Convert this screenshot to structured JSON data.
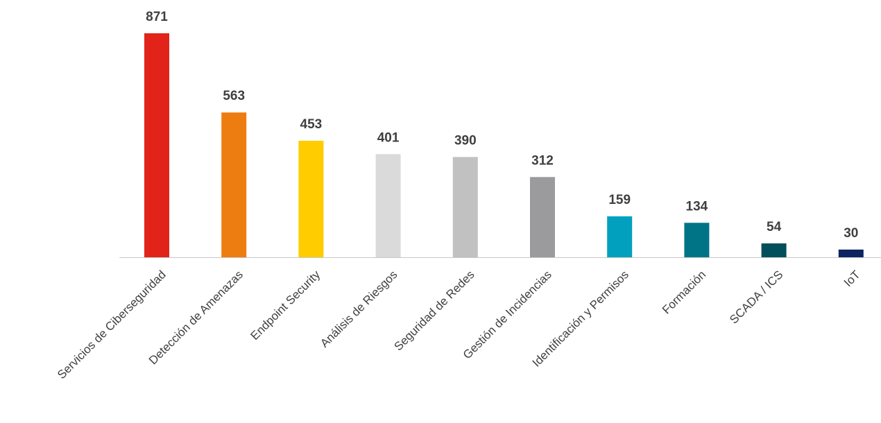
{
  "chart_data": {
    "type": "bar",
    "categories": [
      "Servicios de Ciberseguridad",
      "Detección de Amenazas",
      "Endpoint Security",
      "Análisis de Riesgos",
      "Seguridad de Redes",
      "Gestión de Incidencias",
      "Identificación y Permisos",
      "Formación",
      "SCADA / ICS",
      "IoT"
    ],
    "values": [
      871,
      563,
      453,
      401,
      390,
      312,
      159,
      134,
      54,
      30
    ],
    "colors": [
      "#e2231a",
      "#ee7d11",
      "#ffcc00",
      "#dadada",
      "#c1c1c1",
      "#9b9a9c",
      "#00a0be",
      "#007487",
      "#004f5a",
      "#0d2461"
    ],
    "data_labels": [
      "871",
      "563",
      "453",
      "401",
      "390",
      "312",
      "159",
      "134",
      "54",
      "30"
    ],
    "ylim": [
      0,
      871
    ],
    "grid": false,
    "legend": "none",
    "axis_color": "#c8c8c8",
    "label_color": "#3f3f3f"
  }
}
